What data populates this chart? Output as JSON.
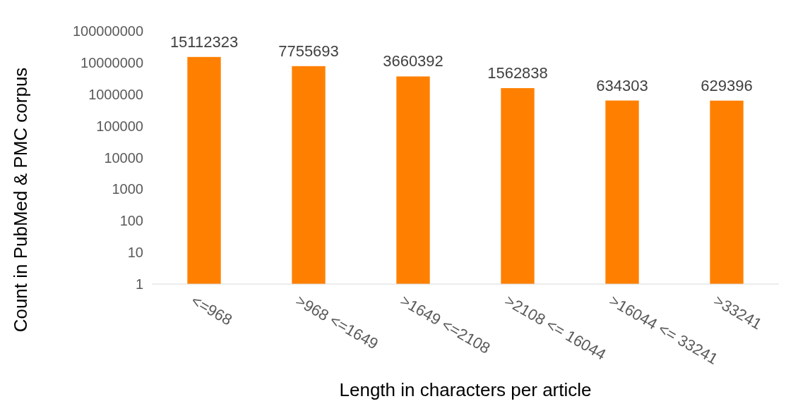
{
  "chart_data": {
    "type": "bar",
    "xlabel": "Length in characters per article",
    "ylabel": "Count in PubMed & PMC corpus",
    "categories": [
      "<=968",
      ">968 <=1649",
      ">1649 <=2108",
      ">2108 <= 16044",
      ">16044 <= 33241",
      ">33241"
    ],
    "values": [
      15112323,
      7755693,
      3660392,
      1562838,
      634303,
      629396
    ],
    "color": "#ff8000",
    "log": true,
    "ylim": [
      1,
      100000000
    ],
    "yticks": [
      1,
      10,
      100,
      1000,
      10000,
      100000,
      1000000,
      10000000,
      100000000
    ],
    "data_labels": true
  }
}
